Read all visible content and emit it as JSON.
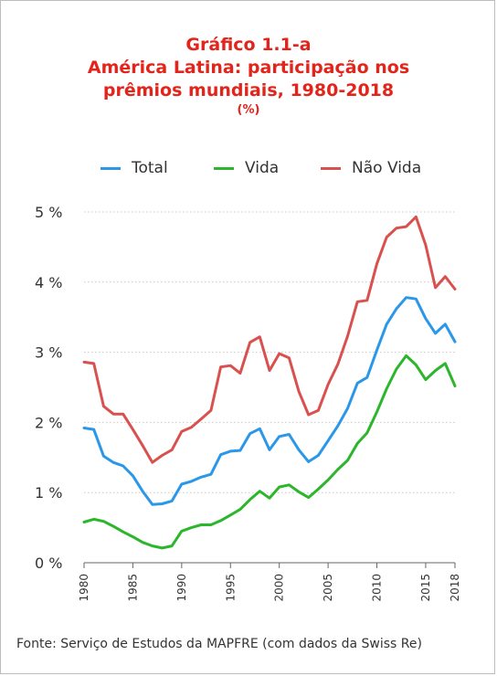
{
  "title": {
    "line1": "Gráfico 1.1-a",
    "line2": "América Latina: participação nos",
    "line3": "prêmios mundiais, 1980-2018",
    "line4": "(%)"
  },
  "source": "Fonte: Serviço de Estudos da MAPFRE (com dados da Swiss Re)",
  "colors": {
    "title": "#e3241b",
    "total": "#2a97e8",
    "vida": "#2bb62b",
    "nao_vida": "#d9514e",
    "grid": "#c8c8c8",
    "text": "#333333"
  },
  "chart_data": {
    "type": "line",
    "title": "América Latina: participação nos prêmios mundiais, 1980-2018",
    "ylabel": "%",
    "ylim": [
      0,
      5
    ],
    "yticks": [
      0,
      1,
      2,
      3,
      4,
      5
    ],
    "ytick_labels": [
      "0 %",
      "1 %",
      "2 %",
      "3 %",
      "4 %",
      "5 %"
    ],
    "xlim": [
      1980,
      2018
    ],
    "xticks": [
      1980,
      1985,
      1990,
      1995,
      2000,
      2005,
      2010,
      2015,
      2018
    ],
    "xtick_labels": [
      "1980",
      "1985",
      "1990",
      "1995",
      "2000",
      "2005",
      "2010",
      "2015",
      "2018"
    ],
    "grid": "horizontal dotted",
    "legend_position": "top",
    "x": [
      1980,
      1981,
      1982,
      1983,
      1984,
      1985,
      1986,
      1987,
      1988,
      1989,
      1990,
      1991,
      1992,
      1993,
      1994,
      1995,
      1996,
      1997,
      1998,
      1999,
      2000,
      2001,
      2002,
      2003,
      2004,
      2005,
      2006,
      2007,
      2008,
      2009,
      2010,
      2011,
      2012,
      2013,
      2014,
      2015,
      2016,
      2017,
      2018
    ],
    "series": [
      {
        "name": "Total",
        "color": "#2a97e8",
        "values": [
          1.92,
          1.9,
          1.52,
          1.43,
          1.38,
          1.24,
          1.02,
          0.83,
          0.84,
          0.88,
          1.12,
          1.16,
          1.22,
          1.26,
          1.54,
          1.59,
          1.6,
          1.84,
          1.91,
          1.61,
          1.8,
          1.83,
          1.61,
          1.44,
          1.53,
          1.74,
          1.95,
          2.2,
          2.56,
          2.64,
          3.03,
          3.4,
          3.62,
          3.78,
          3.76,
          3.48,
          3.27,
          3.4,
          3.15
        ]
      },
      {
        "name": "Vida",
        "color": "#2bb62b",
        "values": [
          0.58,
          0.62,
          0.59,
          0.52,
          0.44,
          0.37,
          0.29,
          0.24,
          0.21,
          0.24,
          0.45,
          0.5,
          0.54,
          0.54,
          0.6,
          0.68,
          0.76,
          0.9,
          1.02,
          0.92,
          1.08,
          1.11,
          1.01,
          0.93,
          1.05,
          1.18,
          1.33,
          1.46,
          1.7,
          1.85,
          2.15,
          2.48,
          2.76,
          2.95,
          2.82,
          2.61,
          2.74,
          2.84,
          2.52
        ]
      },
      {
        "name": "Não Vida",
        "color": "#d9514e",
        "values": [
          2.86,
          2.84,
          2.23,
          2.12,
          2.12,
          1.9,
          1.67,
          1.43,
          1.53,
          1.61,
          1.87,
          1.93,
          2.05,
          2.17,
          2.79,
          2.81,
          2.7,
          3.14,
          3.22,
          2.74,
          2.98,
          2.92,
          2.44,
          2.11,
          2.17,
          2.54,
          2.83,
          3.23,
          3.72,
          3.74,
          4.26,
          4.64,
          4.77,
          4.79,
          4.93,
          4.53,
          3.92,
          4.08,
          3.9
        ]
      }
    ]
  }
}
